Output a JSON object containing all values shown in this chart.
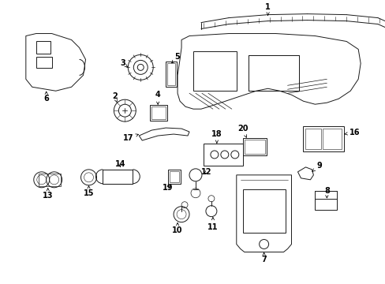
{
  "bg_color": "#ffffff",
  "line_color": "#1a1a1a",
  "fig_width": 4.89,
  "fig_height": 3.6,
  "dpi": 100,
  "font_size": 7,
  "lw": 0.7
}
